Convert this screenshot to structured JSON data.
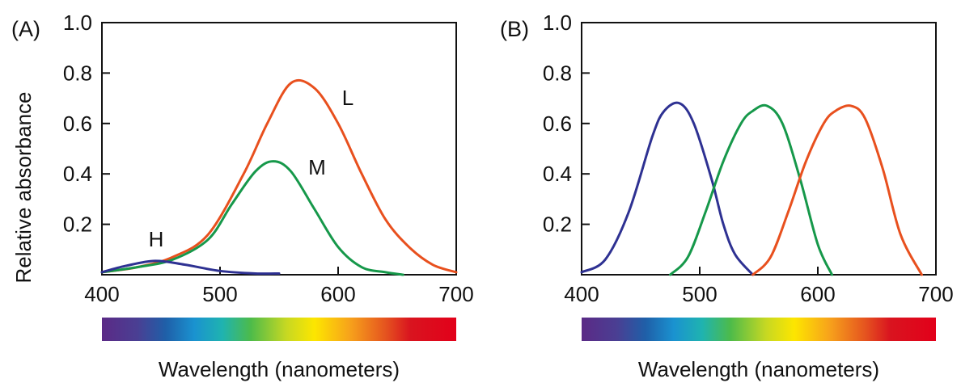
{
  "chart_data": [
    {
      "type": "line",
      "panel_label": "(A)",
      "ylabel": "Relative absorbance",
      "xlabel": "Wavelength (nanometers)",
      "xlim": [
        400,
        700
      ],
      "ylim": [
        0,
        1.0
      ],
      "x_ticks": [
        "400",
        "500",
        "600",
        "700"
      ],
      "y_ticks": [
        "0.2",
        "0.4",
        "0.6",
        "0.8",
        "1.0"
      ],
      "series": [
        {
          "name": "L",
          "color": "#e8501e",
          "x": [
            400,
            430,
            460,
            490,
            520,
            540,
            560,
            580,
            600,
            620,
            640,
            660,
            680,
            700
          ],
          "y": [
            0.01,
            0.03,
            0.07,
            0.16,
            0.4,
            0.6,
            0.76,
            0.74,
            0.6,
            0.4,
            0.22,
            0.11,
            0.04,
            0.01
          ]
        },
        {
          "name": "M",
          "color": "#16984a",
          "x": [
            400,
            430,
            460,
            490,
            510,
            530,
            545,
            560,
            580,
            600,
            620,
            640,
            655
          ],
          "y": [
            0.01,
            0.03,
            0.06,
            0.14,
            0.28,
            0.41,
            0.45,
            0.41,
            0.26,
            0.11,
            0.03,
            0.01,
            0.0
          ]
        },
        {
          "name": "H",
          "color": "#2e3192",
          "x": [
            400,
            420,
            445,
            470,
            500,
            530,
            550
          ],
          "y": [
            0.01,
            0.035,
            0.055,
            0.04,
            0.015,
            0.005,
            0.005
          ]
        }
      ]
    },
    {
      "type": "line",
      "panel_label": "(B)",
      "xlabel": "Wavelength (nanometers)",
      "xlim": [
        400,
        700
      ],
      "ylim": [
        0,
        1.0
      ],
      "x_ticks": [
        "400",
        "500",
        "600",
        "700"
      ],
      "y_ticks": [
        "0.2",
        "0.4",
        "0.6",
        "0.8",
        "1.0"
      ],
      "series": [
        {
          "color": "#2e3192",
          "x": [
            400,
            420,
            440,
            460,
            470,
            483,
            495,
            510,
            520,
            530,
            545
          ],
          "y": [
            0.01,
            0.06,
            0.25,
            0.55,
            0.65,
            0.68,
            0.6,
            0.38,
            0.2,
            0.08,
            0.0
          ]
        },
        {
          "color": "#16984a",
          "x": [
            475,
            490,
            505,
            520,
            535,
            545,
            557,
            570,
            585,
            600,
            612
          ],
          "y": [
            0.0,
            0.07,
            0.25,
            0.45,
            0.6,
            0.65,
            0.67,
            0.6,
            0.38,
            0.12,
            0.0
          ]
        },
        {
          "color": "#e8501e",
          "x": [
            545,
            560,
            575,
            590,
            605,
            615,
            628,
            640,
            655,
            670,
            688
          ],
          "y": [
            0.0,
            0.07,
            0.25,
            0.45,
            0.6,
            0.65,
            0.67,
            0.62,
            0.42,
            0.16,
            0.0
          ]
        }
      ]
    }
  ]
}
